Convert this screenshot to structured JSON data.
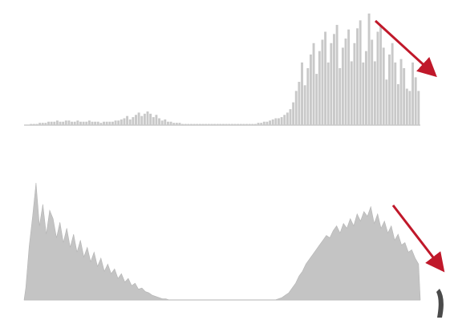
{
  "chart_data": [
    {
      "type": "bar",
      "title": "",
      "xlabel": "",
      "ylabel": "",
      "x_tick_labels": [
        "",
        "",
        "",
        ""
      ],
      "y_tick_labels": [
        "",
        "",
        ""
      ],
      "ylim": [
        0,
        100
      ],
      "grid": false,
      "legend": "none",
      "bar_color": "#c9c9c9",
      "arrow_color": "#c0182a",
      "series": [
        {
          "values": [
            0,
            0,
            1,
            1,
            1,
            2,
            2,
            2,
            3,
            3,
            3,
            4,
            3,
            3,
            4,
            4,
            3,
            3,
            4,
            3,
            3,
            3,
            4,
            3,
            3,
            3,
            2,
            3,
            3,
            3,
            3,
            4,
            4,
            5,
            6,
            8,
            5,
            7,
            9,
            11,
            8,
            10,
            12,
            10,
            7,
            9,
            6,
            4,
            5,
            3,
            3,
            2,
            2,
            2,
            1,
            1,
            1,
            1,
            1,
            1,
            1,
            1,
            1,
            1,
            1,
            1,
            1,
            1,
            1,
            1,
            1,
            1,
            1,
            1,
            1,
            1,
            1,
            1,
            1,
            1,
            2,
            2,
            3,
            3,
            4,
            5,
            6,
            6,
            7,
            9,
            11,
            14,
            20,
            30,
            38,
            55,
            35,
            50,
            62,
            72,
            45,
            65,
            75,
            82,
            55,
            72,
            80,
            88,
            50,
            68,
            76,
            84,
            56,
            72,
            85,
            92,
            55,
            65,
            98,
            75,
            56,
            82,
            87,
            68,
            40,
            62,
            72,
            55,
            36,
            58,
            50,
            32,
            30,
            55,
            42,
            30
          ]
        }
      ],
      "annotation": {
        "type": "arrow",
        "direction": "down-right",
        "color": "#c0182a"
      }
    },
    {
      "type": "area",
      "title": "",
      "xlabel": "",
      "ylabel": "",
      "x_tick_labels": [
        "",
        "",
        "",
        ""
      ],
      "y_tick_labels": [
        "",
        "",
        ""
      ],
      "ylim": [
        0,
        100
      ],
      "grid": false,
      "legend": "none",
      "fill_color": "#c4c4c4",
      "arrow_color": "#c0182a",
      "series": [
        {
          "values": [
            10,
            45,
            70,
            98,
            62,
            80,
            55,
            75,
            68,
            52,
            65,
            48,
            60,
            44,
            55,
            40,
            50,
            36,
            44,
            32,
            40,
            28,
            35,
            24,
            30,
            22,
            26,
            18,
            22,
            15,
            18,
            12,
            14,
            9,
            10,
            7,
            6,
            4,
            3,
            2,
            1,
            1,
            0,
            0,
            0,
            0,
            0,
            0,
            0,
            0,
            0,
            0,
            0,
            0,
            0,
            0,
            0,
            0,
            0,
            0,
            0,
            0,
            0,
            0,
            0,
            0,
            0,
            0,
            0,
            0,
            0,
            0,
            0,
            0,
            1,
            2,
            4,
            6,
            10,
            14,
            20,
            24,
            30,
            34,
            38,
            42,
            46,
            50,
            54,
            52,
            58,
            62,
            56,
            64,
            60,
            68,
            62,
            72,
            66,
            74,
            70,
            78,
            64,
            72,
            60,
            66,
            56,
            62,
            50,
            55,
            46,
            48,
            40,
            42,
            35,
            30
          ]
        }
      ],
      "annotation": {
        "type": "arrow",
        "direction": "down-right",
        "color": "#c0182a"
      }
    }
  ]
}
